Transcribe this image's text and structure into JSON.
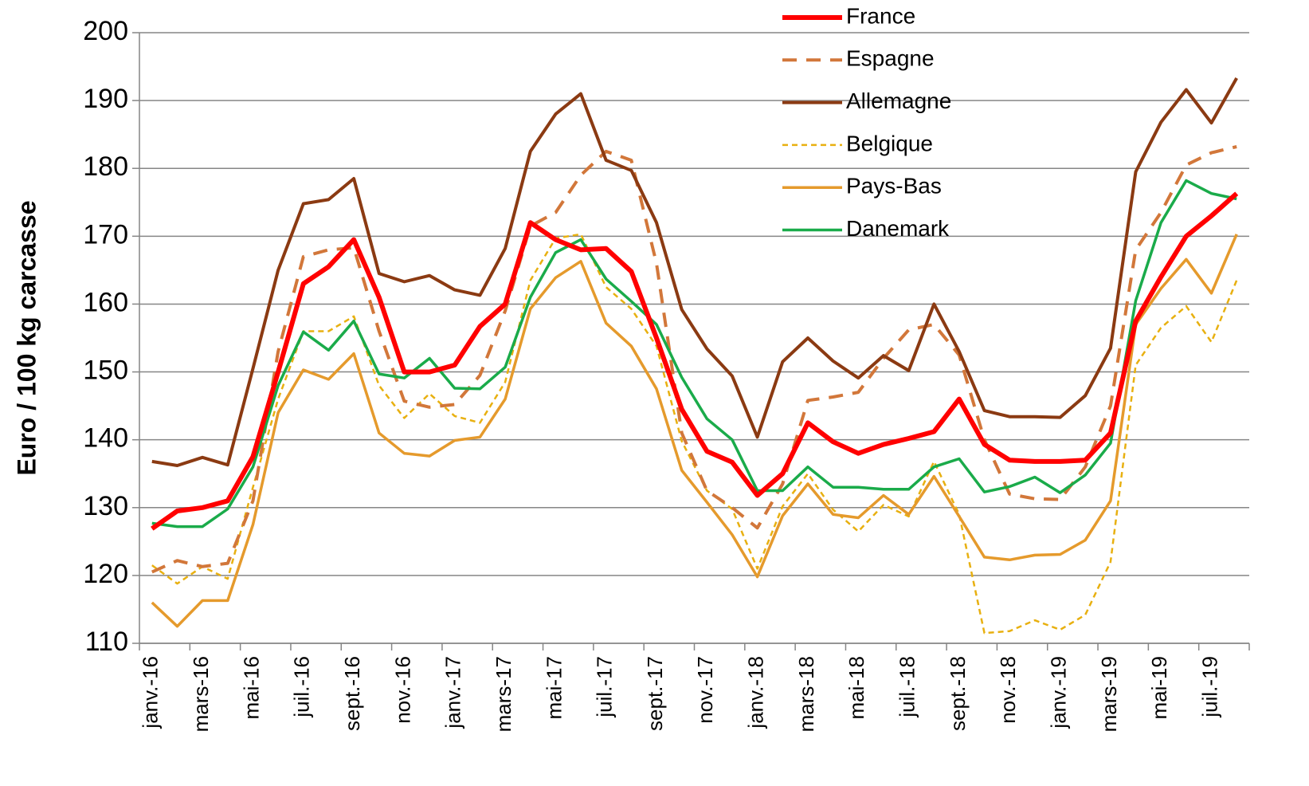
{
  "chart_data": {
    "type": "line",
    "ylabel": "Euro / 100 kg carcasse",
    "categories": [
      "janv.-16",
      null,
      "mars-16",
      null,
      "mai-16",
      null,
      "juil.-16",
      null,
      "sept.-16",
      null,
      "nov.-16",
      null,
      "janv.-17",
      null,
      "mars-17",
      null,
      "mai-17",
      null,
      "juil.-17",
      null,
      "sept.-17",
      null,
      "nov.-17",
      null,
      "janv.-18",
      null,
      "mars-18",
      null,
      "mai-18",
      null,
      "juil.-18",
      null,
      "sept.-18",
      null,
      "nov.-18",
      null,
      "janv.-19",
      null,
      "mars-19",
      null,
      "mai-19",
      null,
      "juil.-19",
      null
    ],
    "series": [
      {
        "name": "France",
        "color": "#ff0000",
        "style": "solid",
        "line_width": 6,
        "values": [
          126.9,
          129.5,
          130,
          131,
          137.5,
          150,
          163,
          165.5,
          169.5,
          161,
          150,
          150,
          151,
          156.7,
          160,
          172,
          169.5,
          168,
          168.2,
          164.8,
          155,
          144.5,
          138.3,
          136.7,
          131.8,
          135,
          142.5,
          139.7,
          138,
          139.3,
          140.2,
          141.2,
          146,
          139.3,
          137,
          136.8,
          136.8,
          137,
          141,
          157.5,
          164,
          170,
          173,
          176.3
        ]
      },
      {
        "name": "Espagne",
        "color": "#d2773a",
        "style": "dashed",
        "line_width": 4,
        "values": [
          120.5,
          122.2,
          121.3,
          121.8,
          131,
          153,
          167,
          168,
          168.3,
          156,
          145.7,
          144.8,
          145.2,
          149.5,
          159,
          171.5,
          173.5,
          179,
          182.5,
          181.2,
          166,
          141,
          132.5,
          130,
          127,
          133.5,
          145.8,
          146.3,
          147,
          152,
          156.2,
          157,
          152.5,
          140,
          132,
          131.3,
          131.2,
          136,
          145,
          168,
          173.5,
          180.5,
          182.3,
          183.2
        ]
      },
      {
        "name": "Allemagne",
        "color": "#8b3a12",
        "style": "solid",
        "line_width": 4,
        "values": [
          136.8,
          136.2,
          137.4,
          136.3,
          150.5,
          165,
          174.8,
          175.4,
          178.5,
          164.5,
          163.3,
          164.2,
          162.1,
          161.3,
          168.2,
          182.5,
          188,
          191,
          181.2,
          179.7,
          172,
          159.2,
          153.4,
          149.4,
          140.4,
          151.5,
          155,
          151.6,
          149.1,
          152.4,
          150.2,
          160,
          153,
          144.3,
          143.4,
          143.4,
          143.3,
          146.5,
          153.5,
          179.5,
          186.8,
          191.6,
          186.7,
          193.3
        ]
      },
      {
        "name": "Belgique",
        "color": "#e8b010",
        "style": "dotted",
        "line_width": 2.5,
        "values": [
          121.5,
          118.8,
          121.3,
          119.5,
          133,
          146,
          156,
          156,
          158.2,
          148,
          143.2,
          146.8,
          143.5,
          142.5,
          148.5,
          163.5,
          169.7,
          170.3,
          162.5,
          159.3,
          153.8,
          139.8,
          132.5,
          129.8,
          121,
          130.2,
          135,
          129.7,
          126.5,
          130.4,
          128.7,
          136.8,
          129,
          111.5,
          111.8,
          113.4,
          112,
          114.2,
          122,
          151,
          156.5,
          159.7,
          154.4,
          163.5
        ]
      },
      {
        "name": "Pays-Bas",
        "color": "#e59a2c",
        "style": "solid",
        "line_width": 3.5,
        "values": [
          116,
          112.5,
          116.3,
          116.3,
          127.5,
          144,
          150.3,
          148.9,
          152.7,
          141,
          138,
          137.6,
          139.9,
          140.4,
          146,
          159.3,
          163.9,
          166.3,
          157.2,
          153.8,
          147.5,
          135.5,
          130.8,
          126,
          119.8,
          128.8,
          133.5,
          129,
          128.5,
          131.8,
          129,
          134.6,
          128.7,
          122.7,
          122.3,
          123,
          123.1,
          125.2,
          131,
          157,
          162.3,
          166.6,
          161.6,
          170.3
        ]
      },
      {
        "name": "Danemark",
        "color": "#1aab4a",
        "style": "solid",
        "line_width": 3.5,
        "values": [
          127.7,
          127.2,
          127.2,
          129.8,
          136,
          148,
          155.9,
          153.2,
          157.5,
          149.7,
          149.1,
          152,
          147.6,
          147.5,
          150.7,
          161,
          167.6,
          169.5,
          163.7,
          160.4,
          157,
          149.2,
          143.1,
          140,
          132.5,
          132.5,
          136,
          133,
          133,
          132.7,
          132.7,
          136,
          137.2,
          132.3,
          133.1,
          134.5,
          132.2,
          134.8,
          139.5,
          160.5,
          172,
          178.2,
          176.3,
          175.5
        ]
      }
    ],
    "ylim": [
      110,
      200
    ],
    "yticks": [
      110,
      120,
      130,
      140,
      150,
      160,
      170,
      180,
      190,
      200
    ],
    "grid": true,
    "legend": "upper center"
  }
}
